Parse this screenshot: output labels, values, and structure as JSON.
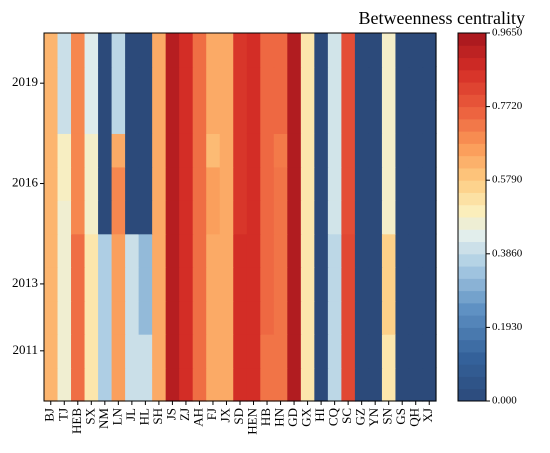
{
  "chart_data": {
    "type": "heatmap",
    "title": "",
    "colorbar_label": "Betweenness centrality",
    "colorbar_ticks": [
      "0.000",
      "0.1930",
      "0.3860",
      "0.5790",
      "0.7720",
      "0.9650"
    ],
    "colorbar_range": [
      0,
      0.965
    ],
    "x_categories": [
      "BJ",
      "TJ",
      "HEB",
      "SX",
      "NM",
      "LN",
      "JL",
      "HL",
      "SH",
      "JS",
      "ZJ",
      "AH",
      "FJ",
      "JX",
      "SD",
      "HEN",
      "HB",
      "HN",
      "GD",
      "GX",
      "HI",
      "CQ",
      "SC",
      "GZ",
      "YN",
      "SN",
      "GS",
      "QH",
      "XJ"
    ],
    "y_ticks": [
      "2011",
      "2013",
      "2016",
      "2019"
    ],
    "y_years": [
      2010,
      2011,
      2012,
      2013,
      2014,
      2015,
      2016,
      2017,
      2018,
      2019,
      2020
    ],
    "y_tick_years": [
      2011,
      2013,
      2016,
      2019
    ],
    "values": [
      [
        0.62,
        0.47,
        0.74,
        0.52,
        0.36,
        0.66,
        0.4,
        0.4,
        0.64,
        0.93,
        0.87,
        0.74,
        0.64,
        0.64,
        0.87,
        0.87,
        0.73,
        0.73,
        0.94,
        0.52,
        0.0,
        0.38,
        0.81,
        0.0,
        0.0,
        0.52,
        0.0,
        0.0,
        0.0
      ],
      [
        0.62,
        0.47,
        0.74,
        0.52,
        0.36,
        0.66,
        0.4,
        0.4,
        0.64,
        0.93,
        0.87,
        0.74,
        0.64,
        0.64,
        0.87,
        0.87,
        0.73,
        0.73,
        0.94,
        0.52,
        0.0,
        0.38,
        0.81,
        0.0,
        0.0,
        0.52,
        0.0,
        0.0,
        0.0
      ],
      [
        0.62,
        0.47,
        0.74,
        0.52,
        0.36,
        0.66,
        0.4,
        0.32,
        0.64,
        0.93,
        0.87,
        0.74,
        0.64,
        0.64,
        0.87,
        0.87,
        0.75,
        0.73,
        0.94,
        0.52,
        0.0,
        0.38,
        0.81,
        0.0,
        0.0,
        0.57,
        0.0,
        0.0,
        0.0
      ],
      [
        0.62,
        0.47,
        0.74,
        0.52,
        0.36,
        0.66,
        0.4,
        0.32,
        0.64,
        0.93,
        0.87,
        0.74,
        0.64,
        0.64,
        0.87,
        0.87,
        0.75,
        0.73,
        0.94,
        0.52,
        0.0,
        0.38,
        0.81,
        0.0,
        0.0,
        0.57,
        0.0,
        0.0,
        0.0
      ],
      [
        0.62,
        0.47,
        0.74,
        0.52,
        0.36,
        0.66,
        0.4,
        0.32,
        0.64,
        0.93,
        0.87,
        0.74,
        0.64,
        0.64,
        0.87,
        0.87,
        0.75,
        0.73,
        0.94,
        0.52,
        0.0,
        0.38,
        0.81,
        0.0,
        0.0,
        0.57,
        0.0,
        0.0,
        0.0
      ],
      [
        0.62,
        0.47,
        0.7,
        0.48,
        0.0,
        0.7,
        0.0,
        0.0,
        0.64,
        0.93,
        0.87,
        0.74,
        0.66,
        0.64,
        0.85,
        0.87,
        0.75,
        0.73,
        0.94,
        0.52,
        0.0,
        0.41,
        0.8,
        0.0,
        0.0,
        0.48,
        0.0,
        0.0,
        0.0
      ],
      [
        0.62,
        0.49,
        0.7,
        0.48,
        0.0,
        0.7,
        0.0,
        0.0,
        0.64,
        0.93,
        0.87,
        0.74,
        0.66,
        0.64,
        0.85,
        0.87,
        0.75,
        0.73,
        0.94,
        0.52,
        0.0,
        0.41,
        0.8,
        0.0,
        0.0,
        0.48,
        0.0,
        0.0,
        0.0
      ],
      [
        0.62,
        0.49,
        0.7,
        0.48,
        0.0,
        0.64,
        0.0,
        0.0,
        0.64,
        0.93,
        0.87,
        0.74,
        0.61,
        0.64,
        0.85,
        0.87,
        0.75,
        0.72,
        0.94,
        0.52,
        0.0,
        0.41,
        0.8,
        0.0,
        0.0,
        0.48,
        0.0,
        0.0,
        0.0
      ],
      [
        0.62,
        0.4,
        0.7,
        0.43,
        0.0,
        0.38,
        0.0,
        0.0,
        0.64,
        0.93,
        0.87,
        0.74,
        0.64,
        0.64,
        0.85,
        0.87,
        0.75,
        0.75,
        0.94,
        0.52,
        0.0,
        0.41,
        0.8,
        0.0,
        0.0,
        0.48,
        0.0,
        0.0,
        0.0
      ],
      [
        0.62,
        0.4,
        0.7,
        0.43,
        0.0,
        0.38,
        0.0,
        0.0,
        0.64,
        0.93,
        0.87,
        0.74,
        0.64,
        0.64,
        0.85,
        0.87,
        0.75,
        0.75,
        0.94,
        0.52,
        0.0,
        0.41,
        0.8,
        0.0,
        0.0,
        0.48,
        0.0,
        0.0,
        0.0
      ],
      [
        0.62,
        0.4,
        0.7,
        0.43,
        0.0,
        0.38,
        0.0,
        0.0,
        0.64,
        0.93,
        0.87,
        0.74,
        0.64,
        0.64,
        0.85,
        0.87,
        0.75,
        0.75,
        0.94,
        0.52,
        0.0,
        0.41,
        0.8,
        0.0,
        0.0,
        0.48,
        0.0,
        0.0,
        0.0
      ]
    ],
    "grid": false,
    "legend": "colorbar-right"
  }
}
